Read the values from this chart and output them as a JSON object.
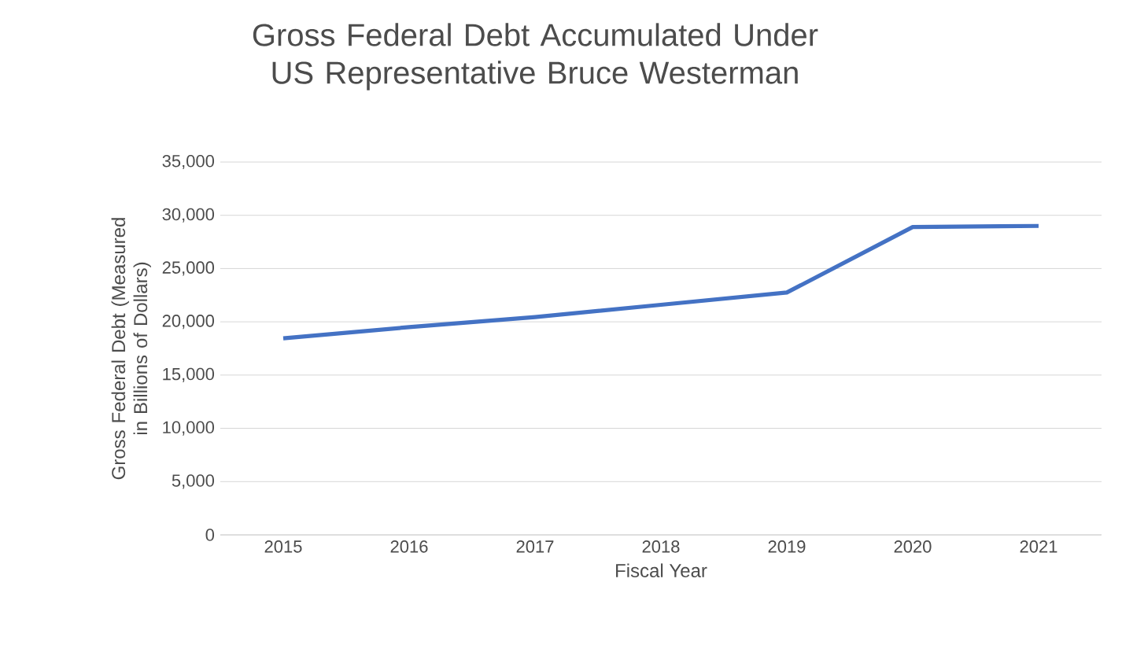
{
  "chart_data": {
    "type": "line",
    "title": "Gross Federal Debt Accumulated Under US Representative Bruce Westerman",
    "xlabel": "Fiscal Year",
    "ylabel": "Gross Federal Debt (Measured in Billions of Dollars)",
    "categories": [
      "2015",
      "2016",
      "2017",
      "2018",
      "2019",
      "2020",
      "2021"
    ],
    "series": [
      {
        "color": "#4472c4",
        "values": [
          18450,
          19500,
          20450,
          21600,
          22750,
          28900,
          29000
        ]
      }
    ],
    "ylim": [
      0,
      35000
    ],
    "yticks": [
      {
        "value": 0,
        "label": "0"
      },
      {
        "value": 5000,
        "label": "5,000"
      },
      {
        "value": 10000,
        "label": "10,000"
      },
      {
        "value": 15000,
        "label": "15,000"
      },
      {
        "value": 20000,
        "label": "20,000"
      },
      {
        "value": 25000,
        "label": "25,000"
      },
      {
        "value": 30000,
        "label": "30,000"
      },
      {
        "value": 35000,
        "label": "35,000"
      }
    ],
    "grid": "y",
    "legend": false,
    "marker": "none",
    "line_style": "solid"
  }
}
